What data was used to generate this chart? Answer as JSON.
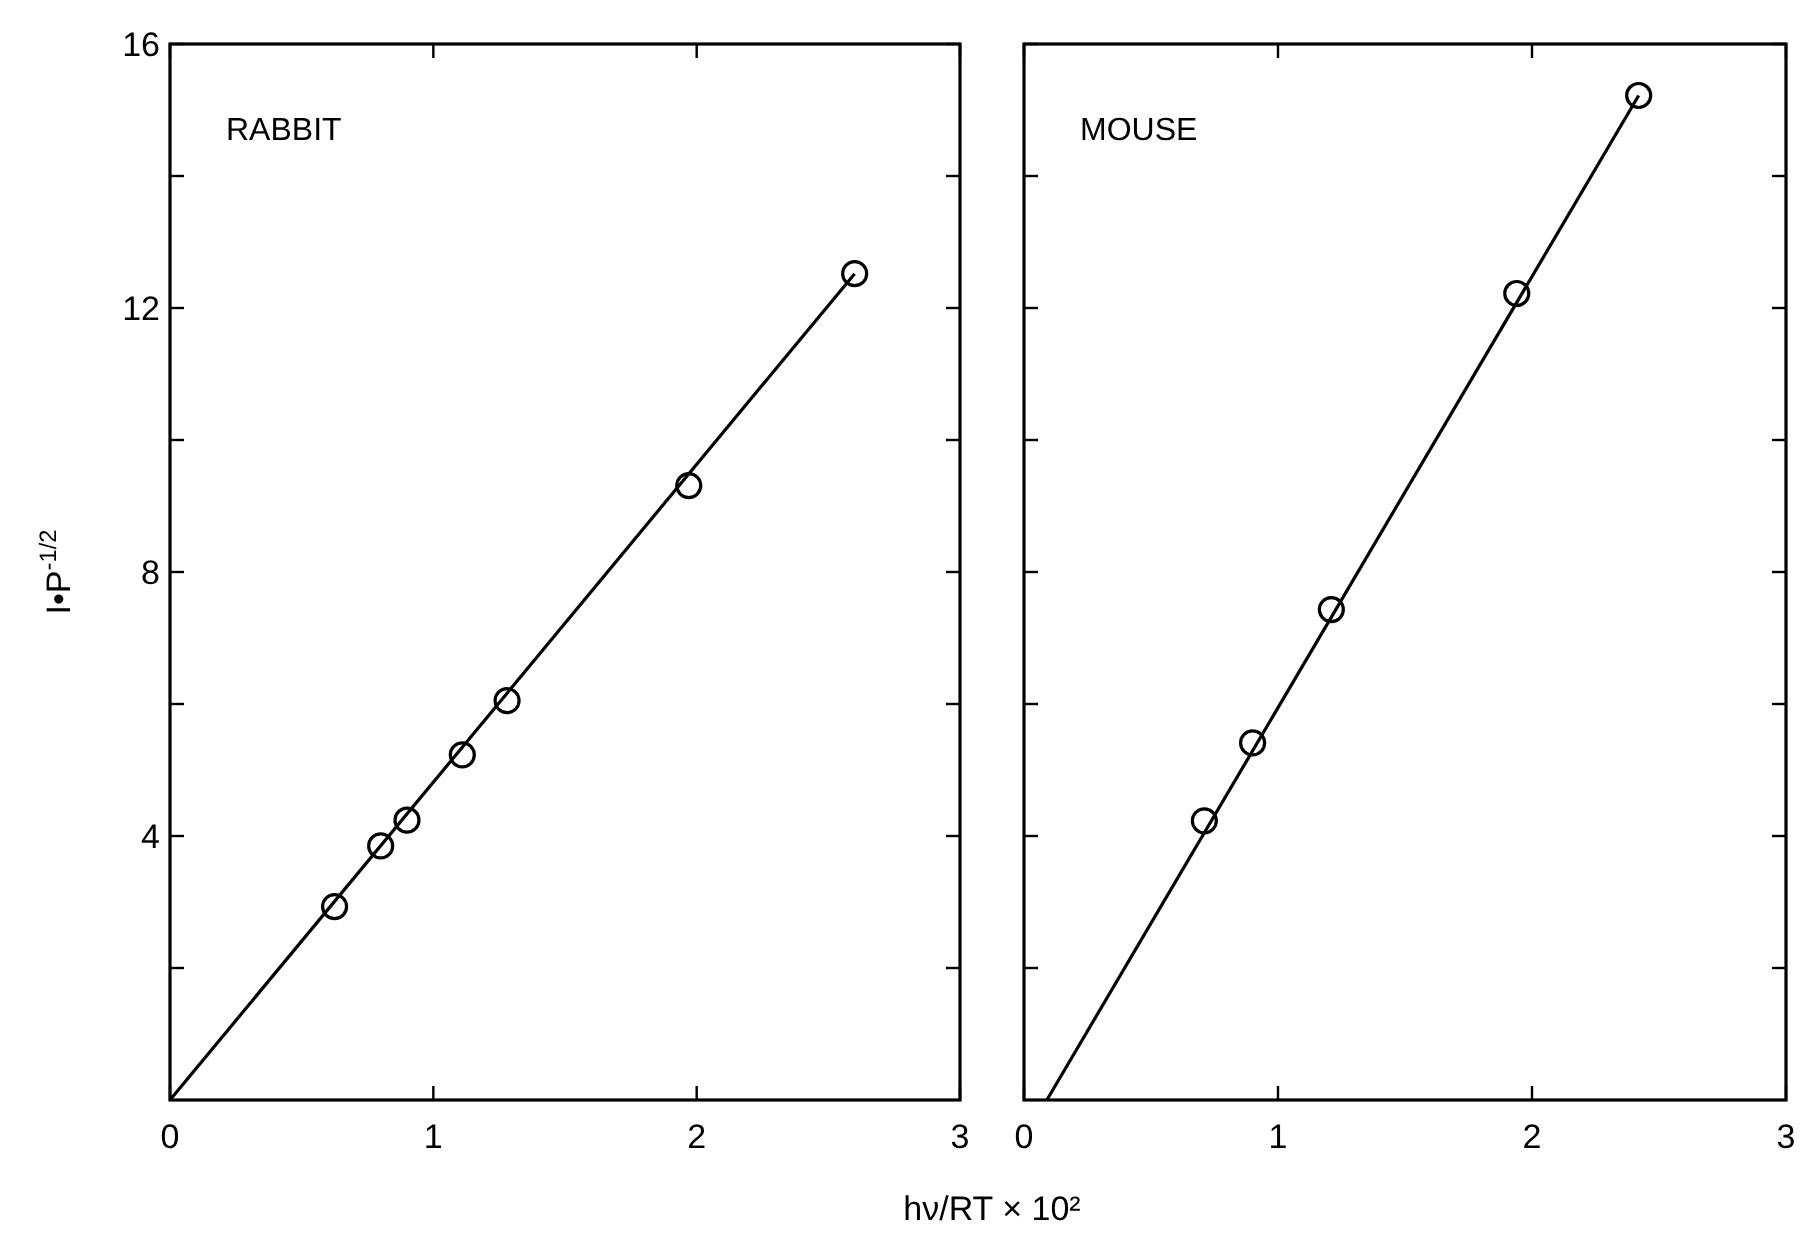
{
  "chart_data": [
    {
      "type": "scatter",
      "title": "RABBIT",
      "ylabel": "I•P$^{-1/2}$",
      "xlabel": "hν/RT × 10²",
      "xlim": [
        0,
        3
      ],
      "xticks": [
        0,
        1,
        2,
        3
      ],
      "ylim": [
        0,
        16
      ],
      "yticks": [
        {
          "value": 2,
          "label": null
        },
        4,
        {
          "value": 6,
          "label": null
        },
        8,
        {
          "value": 10,
          "label": null
        },
        12,
        {
          "value": 14,
          "label": null
        },
        16
      ],
      "grid": false,
      "marker": "circle",
      "series": [
        {
          "color": "#000000",
          "x": [
            0.625,
            0.8,
            0.9,
            1.11,
            1.28,
            1.97,
            2.6
          ],
          "values": [
            2.93,
            3.85,
            4.24,
            5.23,
            6.05,
            9.31,
            12.52
          ]
        },
        {
          "type": "line",
          "color": "#000000",
          "marker": "none",
          "line_style": "solid",
          "x": [
            0,
            2.6
          ],
          "values": [
            0,
            12.52
          ]
        }
      ]
    },
    {
      "type": "scatter",
      "title": "MOUSE",
      "xlim": [
        0,
        3
      ],
      "xticks": [
        0,
        1,
        2,
        3
      ],
      "ylim": [
        0,
        16
      ],
      "yticks": [
        {
          "value": 2,
          "label": null
        },
        {
          "value": 4,
          "label": null
        },
        {
          "value": 6,
          "label": null
        },
        {
          "value": 8,
          "label": null
        },
        {
          "value": 10,
          "label": null
        },
        {
          "value": 12,
          "label": null
        },
        {
          "value": 14,
          "label": null
        },
        {
          "value": 16,
          "label": null
        }
      ],
      "tick_labels": "x",
      "grid": false,
      "marker": "circle",
      "series": [
        {
          "color": "#000000",
          "x": [
            0.71,
            0.9,
            1.21,
            1.94,
            2.42
          ],
          "values": [
            4.23,
            5.41,
            7.43,
            12.22,
            15.22
          ]
        },
        {
          "type": "line",
          "color": "#000000",
          "marker": "none",
          "line_style": "solid",
          "x": [
            0.09,
            2.42
          ],
          "values": [
            0,
            15.22
          ]
        }
      ]
    }
  ]
}
